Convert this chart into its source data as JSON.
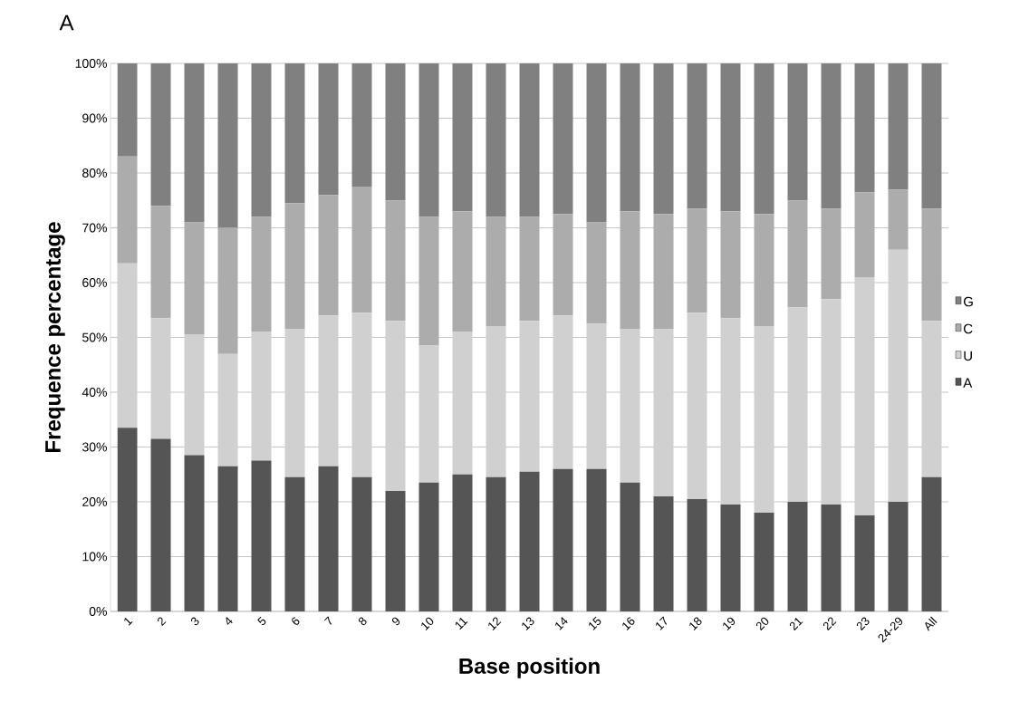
{
  "chart_data": {
    "type": "bar",
    "stacked": true,
    "title": "A",
    "xlabel": "Base position",
    "ylabel": "Frequence percentage",
    "categories": [
      "1",
      "2",
      "3",
      "4",
      "5",
      "6",
      "7",
      "8",
      "9",
      "10",
      "11",
      "12",
      "13",
      "14",
      "15",
      "16",
      "17",
      "18",
      "19",
      "20",
      "21",
      "22",
      "23",
      "24-29",
      "All"
    ],
    "series": [
      {
        "name": "A",
        "color": "#555555",
        "values": [
          33.5,
          31.5,
          28.5,
          26.5,
          27.5,
          24.5,
          26.5,
          24.5,
          22,
          23.5,
          25,
          24.5,
          25.5,
          26,
          26,
          23.5,
          21,
          20.5,
          19.5,
          18,
          20,
          19.5,
          17.5,
          20,
          24.5
        ]
      },
      {
        "name": "U",
        "color": "#d0d0d0",
        "values": [
          30,
          22,
          22,
          20.5,
          23.5,
          27,
          27.5,
          30,
          31,
          25,
          26,
          27.5,
          27.5,
          28,
          26.5,
          28,
          30.5,
          34,
          34,
          34,
          35.5,
          37.5,
          43.5,
          46,
          28.5
        ]
      },
      {
        "name": "C",
        "color": "#acacac",
        "values": [
          19.5,
          20.5,
          20.5,
          23,
          21,
          23,
          22,
          23,
          22,
          23.5,
          22,
          20,
          19,
          18.5,
          18.5,
          21.5,
          21,
          19,
          19.5,
          20.5,
          19.5,
          16.5,
          15.5,
          11,
          20.5
        ]
      },
      {
        "name": "G",
        "color": "#808080",
        "values": [
          17,
          26,
          29,
          30,
          28,
          25.5,
          24,
          22.5,
          25,
          28,
          27,
          28,
          28,
          27.5,
          29,
          27,
          27.5,
          26.5,
          27,
          27.5,
          25,
          26.5,
          23.5,
          23,
          26.5
        ]
      }
    ],
    "ylim": [
      0,
      100
    ],
    "yticks": [
      {
        "value": 0,
        "label": "0%"
      },
      {
        "value": 10,
        "label": "10%"
      },
      {
        "value": 20,
        "label": "20%"
      },
      {
        "value": 30,
        "label": "30%"
      },
      {
        "value": 40,
        "label": "40%"
      },
      {
        "value": 50,
        "label": "50%"
      },
      {
        "value": 60,
        "label": "60%"
      },
      {
        "value": 70,
        "label": "70%"
      },
      {
        "value": 80,
        "label": "80%"
      },
      {
        "value": 90,
        "label": "90%"
      },
      {
        "value": 100,
        "label": "100%"
      }
    ],
    "grid": "y",
    "legend": "right"
  }
}
